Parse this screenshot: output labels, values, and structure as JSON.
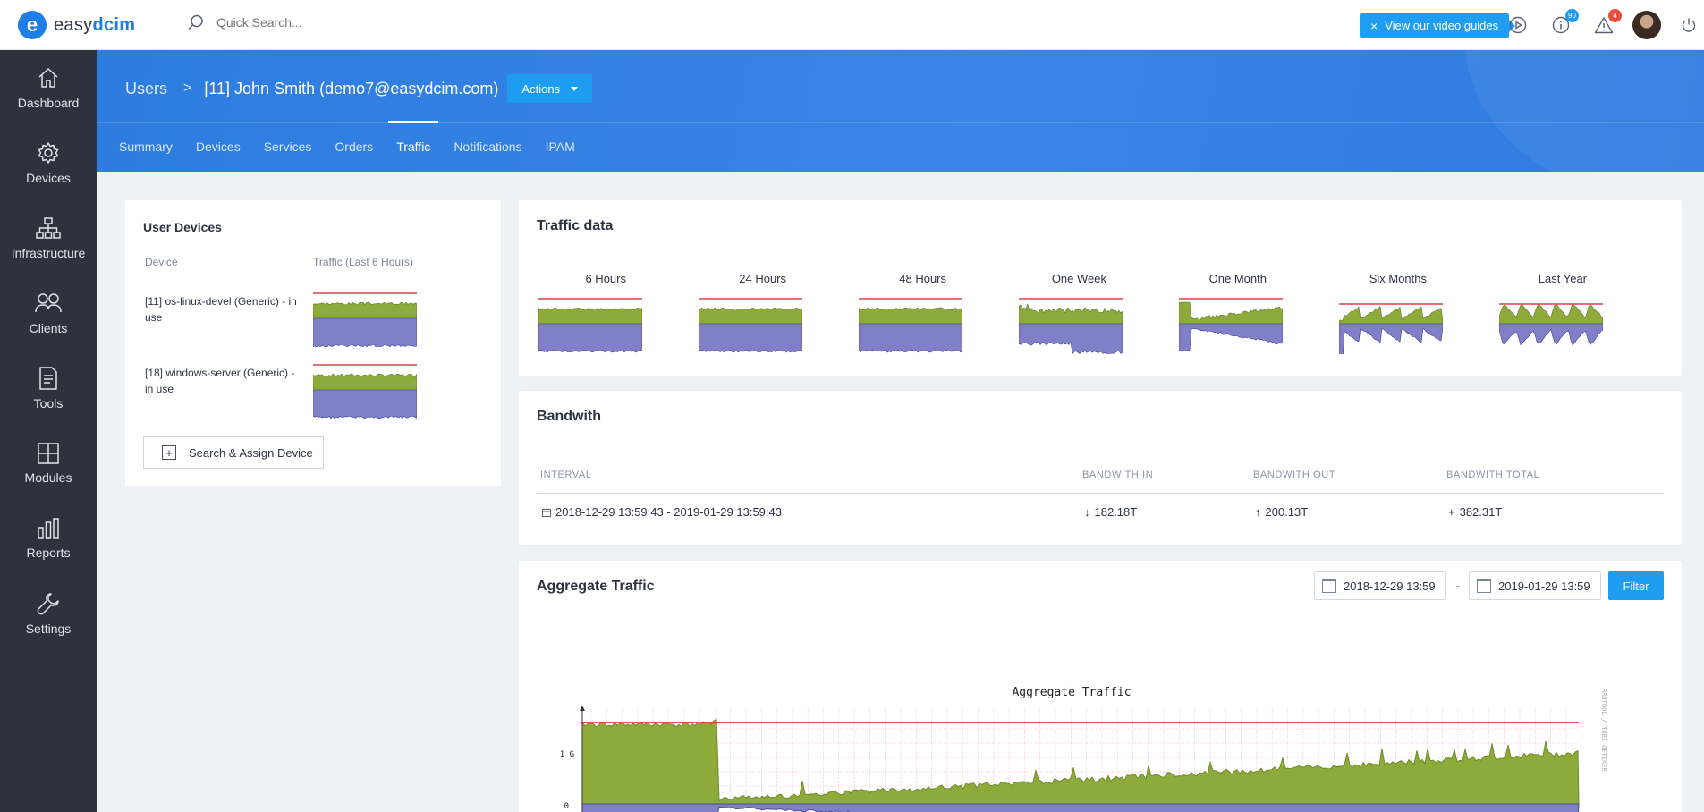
{
  "brand": {
    "name_prefix": "easy",
    "name_suffix": "dcim",
    "mark": "e"
  },
  "search": {
    "placeholder": "Quick Search..."
  },
  "video_guide": {
    "close": "×",
    "label": "View our video guides"
  },
  "notifications": {
    "info_count": "90",
    "alert_count": "4"
  },
  "sidebar": {
    "items": [
      {
        "label": "Dashboard",
        "icon": "home-icon"
      },
      {
        "label": "Devices",
        "icon": "gear-icon"
      },
      {
        "label": "Infrastructure",
        "icon": "sitemap-icon"
      },
      {
        "label": "Clients",
        "icon": "users-icon"
      },
      {
        "label": "Tools",
        "icon": "document-icon"
      },
      {
        "label": "Modules",
        "icon": "grid-icon"
      },
      {
        "label": "Reports",
        "icon": "bar-chart-icon"
      },
      {
        "label": "Settings",
        "icon": "wrench-icon"
      }
    ]
  },
  "breadcrumb": {
    "root": "Users",
    "separator": ">",
    "title": "[11] John Smith (demo7@easydcim.com)"
  },
  "actions_label": "Actions",
  "tabs": [
    {
      "label": "Summary",
      "active": false
    },
    {
      "label": "Devices",
      "active": false
    },
    {
      "label": "Services",
      "active": false
    },
    {
      "label": "Orders",
      "active": false
    },
    {
      "label": "Traffic",
      "active": true
    },
    {
      "label": "Notifications",
      "active": false
    },
    {
      "label": "IPAM",
      "active": false
    }
  ],
  "user_devices": {
    "title": "User Devices",
    "columns": [
      "Device",
      "Traffic (Last 6 Hours)"
    ],
    "rows": [
      {
        "device": "[11] os-linux-devel (Generic) - in use"
      },
      {
        "device": "[18] windows-server (Generic) - in use"
      }
    ],
    "assign_label": "Search & Assign Device"
  },
  "traffic_data": {
    "title": "Traffic data",
    "periods": [
      "6 Hours",
      "24 Hours",
      "48 Hours",
      "One Week",
      "One Month",
      "Six Months",
      "Last Year"
    ]
  },
  "bandwidth": {
    "title": "Bandwith",
    "columns": [
      "INTERVAL",
      "BANDWITH IN",
      "BANDWITH OUT",
      "BANDWITH TOTAL"
    ],
    "row": {
      "interval": "2018-12-29 13:59:43 - 2019-01-29 13:59:43",
      "in": "182.18T",
      "out": "200.13T",
      "total": "382.31T"
    }
  },
  "aggregate": {
    "title": "Aggregate Traffic",
    "from": "2018-12-29 13:59",
    "to": "2019-01-29 13:59",
    "separator": "-",
    "filter_label": "Filter",
    "graph_title": "Aggregate Traffic",
    "y_ticks": [
      "1 G",
      "0"
    ],
    "side_label": "RRDTOOL / TOBI OETIKER"
  },
  "colors": {
    "accent": "#1d9cf2",
    "header": "#2f7de2",
    "sidebar": "#2e323d",
    "traffic_in": "#8cab3a",
    "traffic_out": "#8080c8",
    "limit_line": "#cc1f1f"
  }
}
